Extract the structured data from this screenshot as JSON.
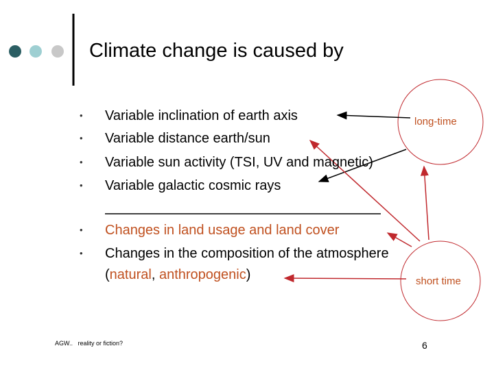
{
  "header": {
    "title": "Climate change is caused by"
  },
  "natural_causes": [
    "Variable inclination of earth axis",
    "Variable distance earth/sun",
    "Variable sun activity (TSI, UV and magnetic)",
    "Variable galactic cosmic rays"
  ],
  "human_causes": [
    "Changes in land usage and land cover",
    "Changes in the composition of the atmosphere"
  ],
  "human_detail": [
    "(",
    "natural",
    ", ",
    "anthropogenic",
    ")"
  ],
  "labels": {
    "long": "long-time",
    "short": "short time"
  },
  "footer": {
    "text": "AGW..   reality or fiction?",
    "page": "6"
  }
}
